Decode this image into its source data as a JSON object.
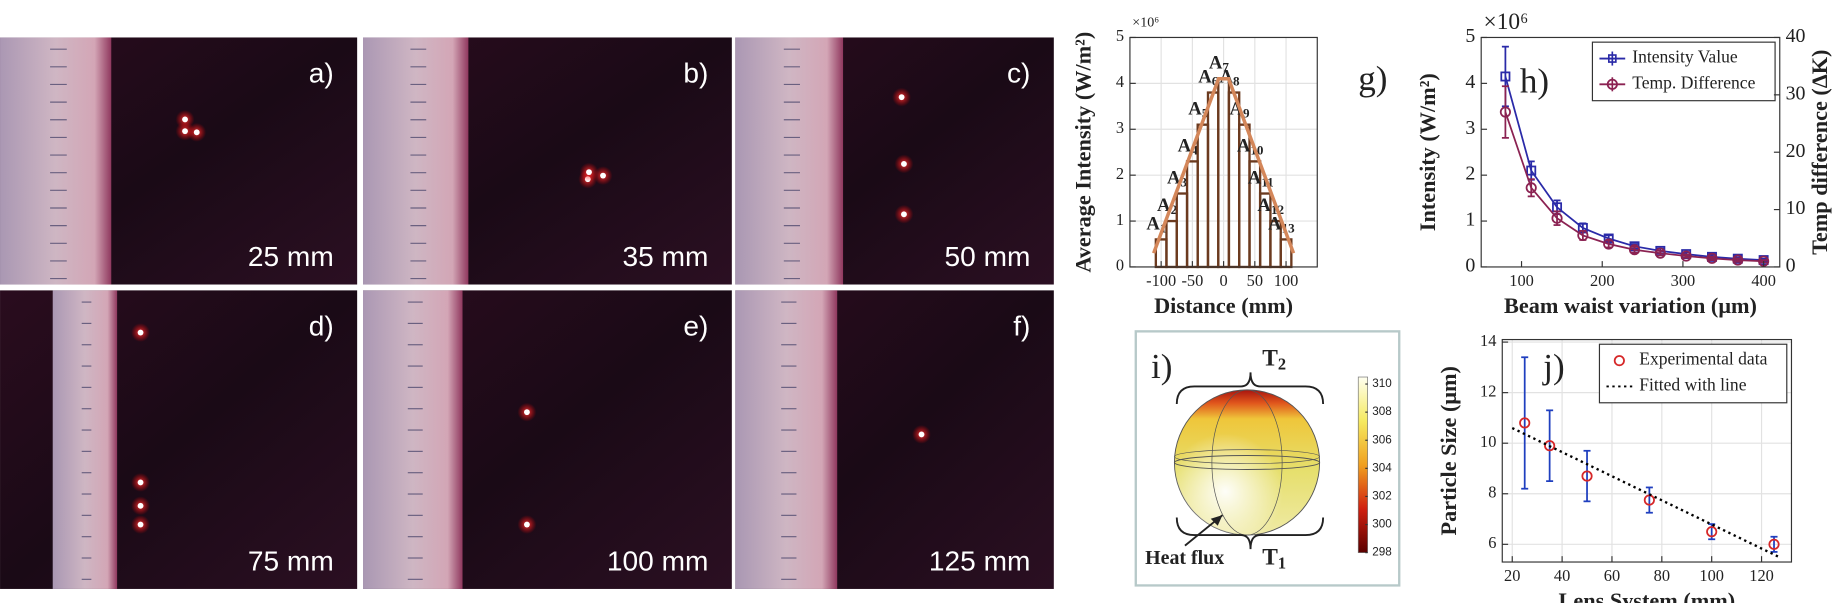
{
  "photos": [
    {
      "label": "a)",
      "caption": "25 mm"
    },
    {
      "label": "b)",
      "caption": "35 mm"
    },
    {
      "label": "c)",
      "caption": "50 mm"
    },
    {
      "label": "d)",
      "caption": "75 mm"
    },
    {
      "label": "e)",
      "caption": "100 mm"
    },
    {
      "label": "f)",
      "caption": "125 mm"
    }
  ],
  "chart_data": [
    {
      "type": "bar",
      "panel_label": "g)",
      "xlabel": "Distance (mm)",
      "ylabel": "Average Intensity (W/m²)",
      "y_multiplier": "×10⁶",
      "categories": [
        "A1",
        "A2",
        "A3",
        "A4",
        "A5",
        "A6",
        "A7",
        "A8",
        "A9",
        "A10",
        "A11",
        "A12",
        "A13"
      ],
      "x": [
        -100,
        -83,
        -67,
        -50,
        -33,
        -17,
        0,
        17,
        33,
        50,
        67,
        83,
        100
      ],
      "values": [
        0.6,
        1.0,
        1.6,
        2.3,
        3.1,
        3.8,
        4.1,
        3.8,
        3.1,
        2.3,
        1.6,
        1.0,
        0.6
      ],
      "color": "#6b3a1f",
      "line": {
        "x": [
          -112,
          -8,
          8,
          112
        ],
        "values": [
          0.3,
          4.1,
          4.1,
          0.3
        ],
        "color": "#d4875a"
      },
      "xlim": [
        -150,
        150
      ],
      "xticks": [
        -100,
        -50,
        0,
        50,
        100
      ],
      "ylim": [
        0,
        5
      ],
      "yticks": [
        0,
        1,
        2,
        3,
        4,
        5
      ],
      "grid": true
    },
    {
      "type": "line",
      "panel_label": "h)",
      "xlabel": "Beam waist variation (μm)",
      "ylabel": "Intensity (W/m²)",
      "y2label": "Temp difference (ΔK)",
      "y_multiplier": "×10⁶",
      "ycolor": "#0072bd",
      "y2color": "#d95319",
      "x": [
        80,
        112,
        144,
        176,
        208,
        240,
        272,
        304,
        336,
        368,
        400
      ],
      "series": [
        {
          "name": "Intensity Value",
          "color": "#2a2aa8",
          "marker": "square",
          "values": [
            4.15,
            2.1,
            1.3,
            0.85,
            0.62,
            0.45,
            0.35,
            0.28,
            0.22,
            0.18,
            0.15
          ],
          "errors": [
            0.65,
            0.2,
            0.15,
            0.1,
            0.07,
            0.05,
            0.05,
            0.04,
            0.04,
            0.03,
            0.03
          ]
        },
        {
          "name": "Temp. Difference",
          "color": "#8b2252",
          "marker": "circle",
          "axis": "y2",
          "values": [
            27,
            13.8,
            8.5,
            5.5,
            4.0,
            3.0,
            2.4,
            1.9,
            1.5,
            1.2,
            1.0
          ],
          "errors": [
            4.5,
            1.5,
            1.2,
            0.8,
            0.6,
            0.5,
            0.4,
            0.3,
            0.3,
            0.3,
            0.2
          ]
        }
      ],
      "xlim": [
        50,
        420
      ],
      "xticks": [
        100,
        200,
        300,
        400
      ],
      "ylim": [
        0,
        5
      ],
      "yticks": [
        0,
        1,
        2,
        3,
        4,
        5
      ],
      "y2lim": [
        0,
        40
      ],
      "y2ticks": [
        0,
        10,
        20,
        30,
        40
      ],
      "legend": "upper right"
    },
    {
      "type": "scatter",
      "panel_label": "j)",
      "xlabel": "Lens System (mm)",
      "ylabel": "Particle Size (μm)",
      "series": [
        {
          "name": "Experimental data",
          "kind": "scatter",
          "color": "#d62728",
          "error_color": "#1f3fbf",
          "x": [
            25,
            35,
            50,
            75,
            100,
            125
          ],
          "values": [
            10.8,
            9.9,
            8.7,
            7.75,
            6.5,
            6.0
          ],
          "errors": [
            2.6,
            1.4,
            1.0,
            0.5,
            0.3,
            0.3
          ]
        },
        {
          "name": "Fitted with line",
          "kind": "line",
          "color": "#000000",
          "dash": "dotted",
          "x": [
            20,
            127
          ],
          "values": [
            10.6,
            5.5
          ]
        }
      ],
      "xlim": [
        16,
        132
      ],
      "xticks": [
        20,
        40,
        60,
        80,
        100,
        120
      ],
      "ylim": [
        5.3,
        14.1
      ],
      "yticks": [
        6,
        8,
        10,
        12,
        14
      ],
      "grid": true,
      "legend": "upper right"
    }
  ],
  "diagram_i": {
    "label": "i)",
    "top": "T2",
    "bottom": "T1",
    "arrow_label": "Heat flux",
    "colorbar": {
      "lim": [
        298,
        310.5
      ],
      "ticks": [
        298,
        300,
        302,
        304,
        306,
        308,
        310
      ]
    }
  }
}
